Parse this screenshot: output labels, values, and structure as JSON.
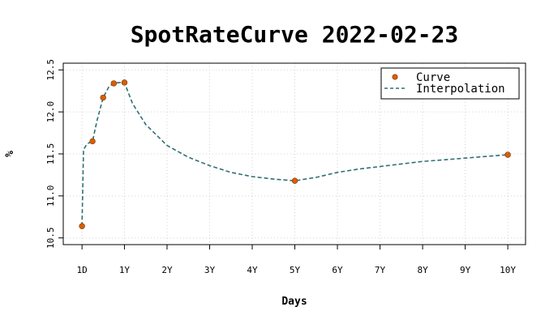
{
  "chart_data": {
    "type": "line",
    "title": "SpotRateCurve 2022-02-23",
    "xlabel": "Days",
    "ylabel": "%",
    "x_ticks": [
      {
        "days": 1,
        "label": "1D"
      },
      {
        "days": 252,
        "label": "1Y"
      },
      {
        "days": 504,
        "label": "2Y"
      },
      {
        "days": 756,
        "label": "3Y"
      },
      {
        "days": 1008,
        "label": "4Y"
      },
      {
        "days": 1260,
        "label": "5Y"
      },
      {
        "days": 1512,
        "label": "6Y"
      },
      {
        "days": 1764,
        "label": "7Y"
      },
      {
        "days": 2016,
        "label": "8Y"
      },
      {
        "days": 2268,
        "label": "9Y"
      },
      {
        "days": 2520,
        "label": "10Y"
      }
    ],
    "y_ticks": [
      10.5,
      11.0,
      11.5,
      12.0,
      12.5
    ],
    "y_tick_labels": [
      "10.5",
      "11.0",
      "11.5",
      "12.0",
      "12.5"
    ],
    "xlim": [
      -110,
      2625
    ],
    "ylim": [
      10.42,
      12.58
    ],
    "grid": true,
    "legend_position": "top-right",
    "series": [
      {
        "name": "Curve",
        "style": "points",
        "color": "#d95f02",
        "x": [
          1,
          63,
          126,
          189,
          252,
          1260,
          2520
        ],
        "y": [
          10.64,
          11.65,
          12.17,
          12.34,
          12.35,
          11.18,
          11.49
        ]
      },
      {
        "name": "Interpolation",
        "style": "dashed-line",
        "color": "#2f6f73",
        "x": [
          1,
          10,
          30,
          63,
          90,
          126,
          160,
          189,
          220,
          252,
          300,
          378,
          504,
          630,
          756,
          882,
          1008,
          1134,
          1260,
          1386,
          1512,
          1638,
          1764,
          1890,
          2016,
          2142,
          2268,
          2394,
          2520
        ],
        "y": [
          10.64,
          11.55,
          11.62,
          11.65,
          11.9,
          12.17,
          12.3,
          12.34,
          12.35,
          12.35,
          12.1,
          11.85,
          11.6,
          11.46,
          11.36,
          11.28,
          11.23,
          11.2,
          11.18,
          11.22,
          11.28,
          11.32,
          11.35,
          11.38,
          11.41,
          11.43,
          11.45,
          11.47,
          11.49
        ]
      }
    ]
  }
}
